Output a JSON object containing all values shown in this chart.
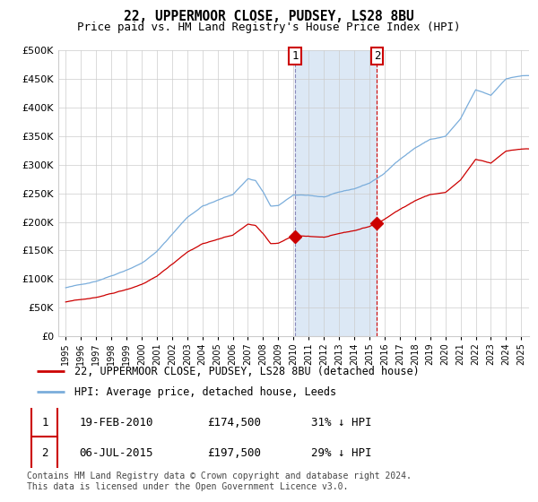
{
  "title": "22, UPPERMOOR CLOSE, PUDSEY, LS28 8BU",
  "subtitle": "Price paid vs. HM Land Registry's House Price Index (HPI)",
  "ylim": [
    0,
    500000
  ],
  "yticks": [
    0,
    50000,
    100000,
    150000,
    200000,
    250000,
    300000,
    350000,
    400000,
    450000,
    500000
  ],
  "sale1_year_float": 2010.122,
  "sale1_price": 174500,
  "sale2_year_float": 2015.503,
  "sale2_price": 197500,
  "hpi_color": "#7aaddb",
  "price_color": "#cc0000",
  "annotation_box_color": "#cc0000",
  "sale1_vline_color": "#aaaacc",
  "sale2_vline_color": "#cc0000",
  "shading_color": "#dce8f5",
  "legend_entry1": "22, UPPERMOOR CLOSE, PUDSEY, LS28 8BU (detached house)",
  "legend_entry2": "HPI: Average price, detached house, Leeds",
  "table_row1": [
    "1",
    "19-FEB-2010",
    "£174,500",
    "31% ↓ HPI"
  ],
  "table_row2": [
    "2",
    "06-JUL-2015",
    "£197,500",
    "29% ↓ HPI"
  ],
  "footer": "Contains HM Land Registry data © Crown copyright and database right 2024.\nThis data is licensed under the Open Government Licence v3.0.",
  "hpi_anchors_years": [
    1995,
    1996,
    1997,
    1998,
    1999,
    2000,
    2001,
    2002,
    2003,
    2004,
    2005,
    2006,
    2007,
    2007.5,
    2008,
    2008.5,
    2009,
    2009.5,
    2010,
    2010.5,
    2011,
    2012,
    2013,
    2014,
    2015,
    2016,
    2017,
    2018,
    2019,
    2020,
    2021,
    2022,
    2023,
    2024,
    2025
  ],
  "hpi_anchors_vals": [
    85000,
    90000,
    97000,
    107000,
    118000,
    130000,
    150000,
    180000,
    210000,
    230000,
    240000,
    250000,
    278000,
    275000,
    255000,
    230000,
    230000,
    240000,
    248000,
    248000,
    248000,
    245000,
    252000,
    258000,
    268000,
    285000,
    310000,
    330000,
    345000,
    350000,
    380000,
    430000,
    420000,
    450000,
    455000
  ],
  "price_ratio": 0.69,
  "noise_seed_hpi": 42,
  "noise_seed_price": 99
}
